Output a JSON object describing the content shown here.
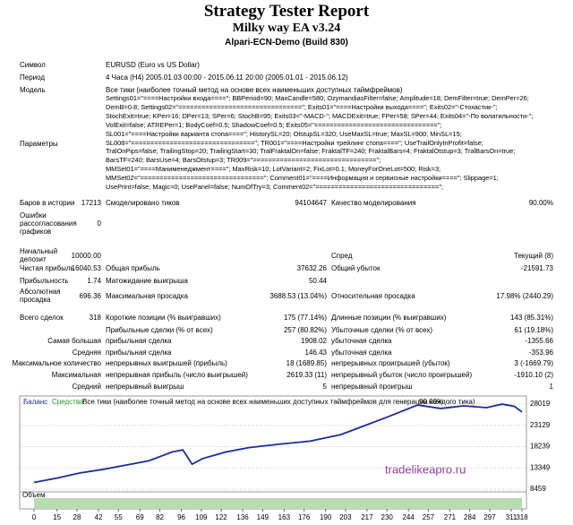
{
  "header": {
    "title": "Strategy Tester Report",
    "ea": "Milky way EA v3.24",
    "server": "Alpari-ECN-Demo (Build 830)"
  },
  "info": [
    [
      "Символ",
      "EURUSD (Euro vs US Dollar)"
    ],
    [
      "Период",
      "4 Часа (H4) 2005.01.03 00:00 - 2015.06.11 20:00 (2005.01.01 - 2015.06.12)"
    ],
    [
      "Модель",
      "Все тики (наиболее точный метод на основе всех наименьших доступных таймфреймов)"
    ]
  ],
  "parameters": {
    "label": "Параметры",
    "lines": [
      "Settings01=\"====Настройки входа====\"; BBPeriod=90; MaxCandle=580; OzymandiasFilter=false; Amplitude=18; DemFilter=true; DemPer=26;",
      "DemB=0.8; Settings02=\"================================\"; Exits01=\"====Настройки выхода====\"; Exits02=\"-Стохастик-\";",
      "StochExit=true; KPer=16; DPer=13; SPer=6; StochB=95; Exits03=\"-MACD-\"; MACDExit=true; FPer=58; SPer=44; Exits04=\"-По волатильности-\";",
      "VolExit=false; ATREPer=1; BodyCoef=0.5; ShadowCoef=0.5; Exits05=\"================================\";",
      "SL001=\"====Настройки варианта стопа====\"; HistorySL=20; OtstupSL=320; UseMaxSL=true; MaxSL=900; MinSL=15;",
      "SL008=\"================================\"; TR001=\"====Настройки трейлинг стопа====\"; UseTrailOnlyInProfit=false;",
      "TralOnPips=false; TrailingStop=20; TrailingStart=30; TralFraktalOn=false; FraktalTF=240; FraktalBars=4; FraktalOtstup=3; TralBarsOn=true;",
      "BarsTF=240; BarsUse=4; BarsOtstup=3; TR009=\"================================\";",
      "MMSet01=\"====Манименеджмент====\"; MaxRisk=10; LotVariant=2; FixLot=0.1; MoneyForOneLot=500; Risk=3;",
      "MMSet02=\"================================\"; Comment01=\"====Информация и сервисные настройки====\"; Slippage=1;",
      "UsePrint=false; Magic=0; UsePanel=false; NumOfTry=3; Comment02=\"================================\";"
    ]
  },
  "stats": [
    [
      "Баров в истории",
      "17213",
      "Смоделировано тиков",
      "94104647",
      "Качество моделирования",
      "90.00%"
    ],
    [
      "Ошибки рассогласования графиков",
      "0"
    ],
    [
      "Начальный депозит",
      "10000.00",
      "Спред",
      "Текущий (8)"
    ],
    [
      "Чистая прибыль",
      "16040.53",
      "Общая прибыль",
      "37632.26",
      "Общий убыток",
      "-21591.73"
    ],
    [
      "Прибыльность",
      "1.74",
      "Матожидание выигрыша",
      "50.44"
    ],
    [
      "Абсолютная просадка",
      "696.36",
      "Максимальная просадка",
      "3688.53 (13.04%)",
      "Относительная просадка",
      "17.98% (2440.29)"
    ],
    [
      "Всего сделок",
      "318",
      "Короткие позиции (% выигравших)",
      "175 (77.14%)",
      "Длинные позиции (% выигравших)",
      "143 (85.31%)"
    ],
    [
      "Прибыльные сделки (% от всех)",
      "257 (80.82%)",
      "Убыточные сделки (% от всех)",
      "61 (19.18%)"
    ],
    [
      "Самая большая",
      "прибыльная сделка",
      "1908.02",
      "убыточная сделка",
      "-1355.66"
    ],
    [
      "Средняя",
      "прибыльная сделка",
      "146.43",
      "убыточная сделка",
      "-353.96"
    ],
    [
      "Максимальное количество",
      "непрерывных выигрышей (прибыль)",
      "18 (1689.85)",
      "непрерывных проигрышей (убыток)",
      "3 (-1669.79)"
    ],
    [
      "Максимальная",
      "непрерывная прибыль (число выигрышей)",
      "2619.33 (11)",
      "непрерывный убыток (число проигрышей)",
      "-1910.10 (2)"
    ],
    [
      "Средний",
      "непрерывный выигрыш",
      "5",
      "непрерывный проигрыш",
      "1"
    ]
  ],
  "chart_data": {
    "type": "line",
    "equity_label": "Средства",
    "subtitle": "Все тики (наиболее точный метод на основе всех наименьших доступных таймфреймов для генерации каждого тика)",
    "quality": "90.00%",
    "volume_label": "Объем",
    "watermark": "tradelikeapro.ru",
    "x": [
      0,
      15,
      30,
      45,
      60,
      75,
      90,
      97,
      103,
      110,
      125,
      140,
      160,
      180,
      200,
      215,
      230,
      250,
      265,
      280,
      295,
      305,
      313,
      318
    ],
    "series": [
      {
        "name": "Баланс",
        "color": "#1c2b9e",
        "values": [
          10000,
          11000,
          12200,
          13000,
          14000,
          15000,
          17000,
          17500,
          14200,
          15500,
          17000,
          18000,
          18800,
          19500,
          21000,
          23000,
          25000,
          27800,
          27000,
          27600,
          27200,
          28000,
          27500,
          26200
        ]
      }
    ],
    "xlim": [
      0,
      318
    ],
    "xticks": [
      0,
      15,
      28,
      42,
      55,
      69,
      82,
      96,
      109,
      122,
      136,
      149,
      163,
      176,
      190,
      203,
      217,
      230,
      244,
      257,
      271,
      284,
      297,
      311,
      318
    ],
    "ylim": [
      8459,
      28019
    ],
    "yticks": [
      8459,
      13349,
      18239,
      23129,
      28019
    ],
    "grid": true
  }
}
